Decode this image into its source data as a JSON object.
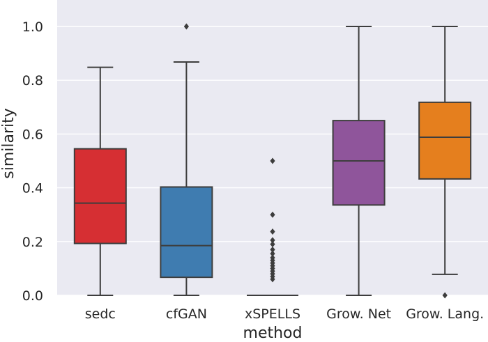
{
  "chart_data": {
    "type": "box",
    "xlabel": "method",
    "ylabel": "similarity",
    "ylim": [
      0.0,
      1.08
    ],
    "yticks": [
      0.0,
      0.2,
      0.4,
      0.6,
      0.8,
      1.0
    ],
    "ytick_labels": [
      "0.0",
      "0.2",
      "0.4",
      "0.6",
      "0.8",
      "1.0"
    ],
    "grid": true,
    "background": "#eaeaf2",
    "categories": [
      "sedc",
      "cfGAN",
      "xSPELLS",
      "Grow. Net",
      "Grow. Lang."
    ],
    "boxes": [
      {
        "category": "sedc",
        "color": "#d62f33",
        "whisker_low": 0.0,
        "q1": 0.193,
        "median": 0.343,
        "q3": 0.545,
        "whisker_high": 0.848,
        "outliers": []
      },
      {
        "category": "cfGAN",
        "color": "#3f7cb0",
        "whisker_low": 0.0,
        "q1": 0.067,
        "median": 0.185,
        "q3": 0.403,
        "whisker_high": 0.868,
        "outliers": [
          1.0
        ]
      },
      {
        "category": "xSPELLS",
        "color": "#4d9b4a",
        "whisker_low": 0.0,
        "q1": 0.0,
        "median": 0.0,
        "q3": 0.0,
        "whisker_high": 0.0,
        "outliers": [
          0.5,
          0.3,
          0.237,
          0.205,
          0.19,
          0.17,
          0.155,
          0.14,
          0.13,
          0.12,
          0.11,
          0.1,
          0.09,
          0.08,
          0.07,
          0.06
        ]
      },
      {
        "category": "Grow. Net",
        "color": "#8f559b",
        "whisker_low": 0.0,
        "q1": 0.336,
        "median": 0.5,
        "q3": 0.65,
        "whisker_high": 1.0,
        "outliers": []
      },
      {
        "category": "Grow. Lang.",
        "color": "#e57f1e",
        "whisker_low": 0.078,
        "q1": 0.433,
        "median": 0.588,
        "q3": 0.718,
        "whisker_high": 1.0,
        "outliers": [
          0.0
        ]
      }
    ]
  }
}
